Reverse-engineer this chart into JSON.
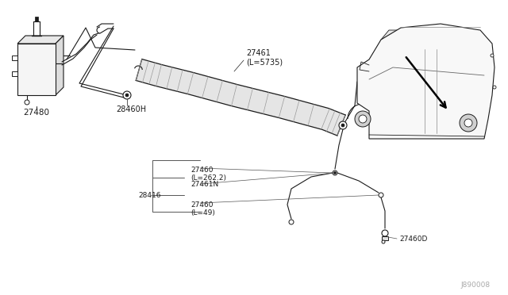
{
  "bg_color": "#ffffff",
  "line_color": "#1a1a1a",
  "fig_width": 6.4,
  "fig_height": 3.72,
  "dpi": 100,
  "watermark": "J890008",
  "tank_label": "27480",
  "clip_label": "28460H",
  "main_hose_label": "27461\n(L=5735)",
  "hose_262_label": "27460\n(L=262.2)",
  "hose_conn_label": "27461N",
  "conn_28416_label": "28416",
  "hose_49_label": "27460\n(L=49)",
  "nozzle_label": "27460D"
}
